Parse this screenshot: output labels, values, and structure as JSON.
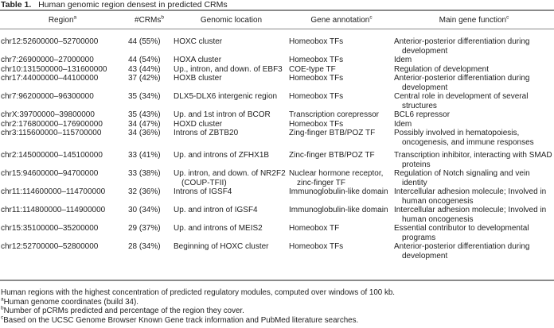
{
  "title": {
    "label": "Table 1.",
    "text": "Human genomic region densest in predicted CRMs"
  },
  "columns": [
    {
      "label": "Region",
      "sup": "a"
    },
    {
      "label": "#CRMs",
      "sup": "b"
    },
    {
      "label": "Genomic location",
      "sup": ""
    },
    {
      "label": "Gene annotation",
      "sup": "c"
    },
    {
      "label": "Main gene function",
      "sup": "c"
    }
  ],
  "rows": [
    [
      "chr12:52600000–52700000",
      "44 (55%)",
      "HOXC cluster",
      "Homeobox TFs",
      "Anterior-posterior differentiation during development"
    ],
    [
      "chr7:26900000–27000000",
      "44 (54%)",
      "HOXA cluster",
      "Homeobox TFs",
      "Idem"
    ],
    [
      "chr10:131500000–131600000",
      "43 (44%)",
      "Up., intron, and down. of EBF3",
      "COE-type TF",
      "Regulation of development"
    ],
    [
      "chr17:44000000–44100000",
      "37 (42%)",
      "HOXB cluster",
      "Homeobox TFs",
      "Anterior-posterior differentiation during development"
    ],
    [
      "chr7:96200000–96300000",
      "35 (34%)",
      "DLX5-DLX6 intergenic region",
      "Homeobox TFs",
      "Central role in development of several structures"
    ],
    [
      "chrX:39700000–39800000",
      "35 (43%)",
      "Up. and 1st intron of BCOR",
      "Transcription corepressor",
      "BCL6 repressor"
    ],
    [
      "chr2:176800000–176900000",
      "34 (47%)",
      "HOXD cluster",
      "Homeobox TFs",
      "Idem"
    ],
    [
      "chr3:115600000–115700000",
      "34 (36%)",
      "Introns of ZBTB20",
      "Zing-finger BTB/POZ TF",
      "Possibly involved in hematopoiesis, oncogenesis, and immune responses"
    ],
    [
      "chr2:145000000–145100000",
      "33 (41%)",
      "Up. and introns of ZFHX1B",
      "Zinc-finger BTB/POZ TF",
      "Transcription inhibitor, interacting with SMAD proteins"
    ],
    [
      "chr15:94600000–94700000",
      "33 (38%)",
      "Up. intron, and down. of NR2F2 (COUP-TFII)",
      "Nuclear hormone receptor, zinc-finger TF",
      "Regulation of Notch signaling and vein identity"
    ],
    [
      "chr11:114600000–114700000",
      "32 (36%)",
      "Introns of IGSF4",
      "Immunoglobulin-like domain",
      "Intercellular adhesion molecule; Involved in human oncogenesis"
    ],
    [
      "chr11:114800000–114900000",
      "30 (34%)",
      "Up. and intron of IGSF4",
      "Immunoglobulin-like domain",
      "Intercellular adhesion molecule; Involved in human oncogenesis"
    ],
    [
      "chr15:35100000–35200000",
      "29 (37%)",
      "Up. and introns of MEIS2",
      "Homeobox TF",
      "Essential contributor to developmental programs"
    ],
    [
      "chr12:52700000–52800000",
      "28 (34%)",
      "Beginning of HOXC cluster",
      "Homeobox TFs",
      "Anterior-posterior differentiation during development"
    ]
  ],
  "footnotes": [
    {
      "sup": "",
      "text": "Human regions with the highest concentration of predicted regulatory modules, computed over windows of 100 kb."
    },
    {
      "sup": "a",
      "text": "Human genome coordinates (build 34)."
    },
    {
      "sup": "b",
      "text": "Number of pCRMs predicted and percentage of the region they cover."
    },
    {
      "sup": "c",
      "text": "Based on the UCSC Genome Browser Known Gene track information and PubMed literature searches."
    }
  ]
}
